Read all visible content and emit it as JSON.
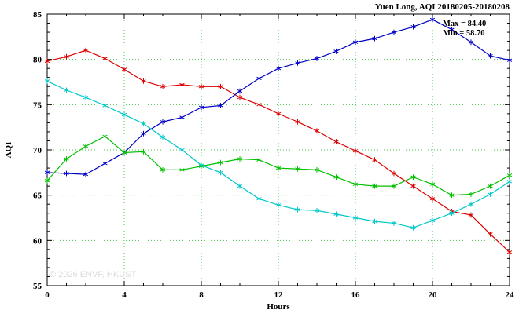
{
  "title": "Yuen Long, AQI 20180205-20180208",
  "watermark": "© 2026 ENVF, HKUST",
  "annotation": {
    "max_label": "Max = 84.40",
    "min_label": "Min = 58.70"
  },
  "colors": {
    "grid": "#44c544",
    "axis": "#000000",
    "background": "#ffffff",
    "watermark": "#dcdcdc"
  },
  "chart_data": {
    "type": "line",
    "title": "Yuen Long, AQI 20180205-20180208",
    "xlabel": "Hours",
    "ylabel": "AQI",
    "xlim": [
      0,
      24
    ],
    "ylim": [
      55,
      85
    ],
    "x_ticks": [
      0,
      4,
      8,
      12,
      16,
      20,
      24
    ],
    "y_ticks": [
      55,
      60,
      65,
      70,
      75,
      80,
      85
    ],
    "grid": true,
    "legend_position": "none",
    "marker": "asterisk",
    "max_value": 84.4,
    "min_value": 58.7,
    "x": [
      0,
      1,
      2,
      3,
      4,
      5,
      6,
      7,
      8,
      9,
      10,
      11,
      12,
      13,
      14,
      15,
      16,
      17,
      18,
      19,
      20,
      21,
      22,
      23,
      24
    ],
    "series": [
      {
        "name": "red-line",
        "color": "#dd0000",
        "values": [
          79.8,
          80.3,
          81.0,
          80.1,
          78.9,
          77.6,
          77.0,
          77.2,
          77.0,
          77.0,
          75.8,
          75.0,
          74.0,
          73.1,
          72.1,
          70.9,
          69.9,
          68.9,
          67.4,
          66.0,
          64.6,
          63.2,
          62.8,
          60.7,
          58.7
        ]
      },
      {
        "name": "blue-line",
        "color": "#0000c8",
        "values": [
          67.5,
          67.4,
          67.3,
          68.5,
          69.7,
          71.8,
          73.1,
          73.6,
          74.7,
          74.9,
          76.5,
          77.9,
          79.0,
          79.6,
          80.1,
          80.9,
          81.9,
          82.3,
          83.0,
          83.6,
          84.4,
          83.3,
          81.9,
          80.4,
          79.9
        ]
      },
      {
        "name": "green-line",
        "color": "#00c000",
        "values": [
          66.6,
          69.0,
          70.4,
          71.5,
          69.7,
          69.8,
          67.8,
          67.8,
          68.2,
          68.6,
          69.0,
          68.9,
          68.0,
          67.9,
          67.8,
          67.0,
          66.2,
          66.0,
          66.0,
          67.0,
          66.2,
          65.0,
          65.1,
          66.0,
          67.2
        ]
      },
      {
        "name": "cyan-line",
        "color": "#00c8c8",
        "values": [
          77.6,
          76.6,
          75.8,
          74.9,
          73.9,
          72.9,
          71.4,
          70.0,
          68.3,
          67.5,
          66.0,
          64.6,
          63.9,
          63.4,
          63.3,
          62.9,
          62.5,
          62.1,
          61.9,
          61.4,
          62.2,
          63.0,
          64.0,
          65.1,
          66.5
        ]
      }
    ]
  }
}
